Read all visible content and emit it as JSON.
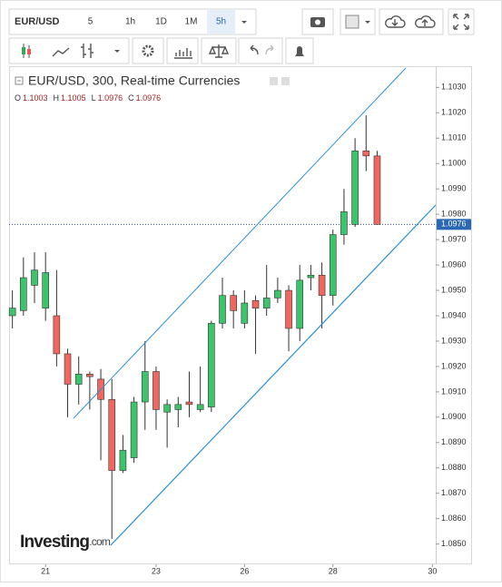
{
  "toolbar": {
    "symbol": "EUR/USD",
    "intervals": [
      "5",
      "1h",
      "1D",
      "1M",
      "5h"
    ],
    "active": 4
  },
  "chart_data": {
    "type": "candlestick",
    "title": "EUR/USD, 300, Real-time Currencies",
    "ohlc_labels": [
      "O",
      "H",
      "L",
      "C"
    ],
    "open": [
      1.094,
      1.0942,
      1.0952,
      1.0943,
      1.094,
      1.0925,
      1.0913,
      1.0917,
      1.0915,
      1.0907,
      1.0879,
      1.0884,
      1.0906,
      1.0918,
      1.0902,
      1.0903,
      1.0906,
      1.0903,
      1.0904,
      1.0937,
      1.0948,
      1.0937,
      1.0946,
      1.0943,
      1.0947,
      1.095,
      1.0935,
      1.0955,
      1.0956,
      1.0948,
      1.0972,
      1.0976,
      1.1005,
      1.1003
    ],
    "high": [
      1.095,
      1.0963,
      1.0965,
      1.0965,
      1.0958,
      1.0927,
      1.0924,
      1.0918,
      1.0919,
      1.0915,
      1.0893,
      1.0908,
      1.093,
      1.092,
      1.0907,
      1.0908,
      1.0918,
      1.092,
      1.0938,
      1.0955,
      1.095,
      1.095,
      1.0948,
      1.096,
      1.0955,
      1.0952,
      1.096,
      1.096,
      1.0961,
      1.0974,
      1.099,
      1.101,
      1.1019,
      1.1005
    ],
    "low": [
      1.0935,
      1.094,
      1.0945,
      1.0938,
      1.092,
      1.09,
      1.0905,
      1.0903,
      1.0883,
      1.0852,
      1.0878,
      1.0882,
      1.0895,
      1.0895,
      1.0888,
      1.0896,
      1.09,
      1.0902,
      1.0902,
      1.0935,
      1.0935,
      1.0935,
      1.0925,
      1.094,
      1.0945,
      1.0926,
      1.093,
      1.095,
      1.0935,
      1.0944,
      1.0968,
      1.0975,
      1.0997,
      1.0976
    ],
    "close": [
      1.0943,
      1.0955,
      1.0958,
      1.0957,
      1.0925,
      1.0913,
      1.0917,
      1.0916,
      1.0907,
      1.0879,
      1.0887,
      1.0906,
      1.0918,
      1.0903,
      1.0905,
      1.0905,
      1.0905,
      1.0905,
      1.0937,
      1.0948,
      1.0942,
      1.0945,
      1.0943,
      1.0947,
      1.095,
      1.0935,
      1.0954,
      1.0956,
      1.0948,
      1.0972,
      1.0981,
      1.1005,
      1.1003,
      1.0976
    ],
    "up_color": "#3cc46a",
    "down_color": "#f0675f",
    "xlim": [
      -0.3,
      38.3
    ],
    "xticks": [
      {
        "value": 3,
        "label": "21"
      },
      {
        "value": 13,
        "label": "23"
      },
      {
        "value": 21,
        "label": "26"
      },
      {
        "value": 29,
        "label": "28"
      },
      {
        "value": 38,
        "label": "30"
      }
    ],
    "ylim": [
      1.0842,
      1.1038
    ],
    "yticks": [
      {
        "value": 1.085,
        "label": "1.0850"
      },
      {
        "value": 1.086,
        "label": "1.0860"
      },
      {
        "value": 1.087,
        "label": "1.0870"
      },
      {
        "value": 1.088,
        "label": "1.0880"
      },
      {
        "value": 1.089,
        "label": "1.0890"
      },
      {
        "value": 1.09,
        "label": "1.0900"
      },
      {
        "value": 1.091,
        "label": "1.0910"
      },
      {
        "value": 1.092,
        "label": "1.0920"
      },
      {
        "value": 1.093,
        "label": "1.0930"
      },
      {
        "value": 1.094,
        "label": "1.0940"
      },
      {
        "value": 1.095,
        "label": "1.0950"
      },
      {
        "value": 1.096,
        "label": "1.0960"
      },
      {
        "value": 1.097,
        "label": "1.0970"
      },
      {
        "value": 1.098,
        "label": "1.0980"
      },
      {
        "value": 1.099,
        "label": "1.0990"
      },
      {
        "value": 1.1,
        "label": "1.1000"
      },
      {
        "value": 1.101,
        "label": "1.1010"
      },
      {
        "value": 1.102,
        "label": "1.1020"
      },
      {
        "value": 1.103,
        "label": "1.1030"
      }
    ],
    "watermark": "Investing",
    "watermark_suffix": ".com"
  }
}
